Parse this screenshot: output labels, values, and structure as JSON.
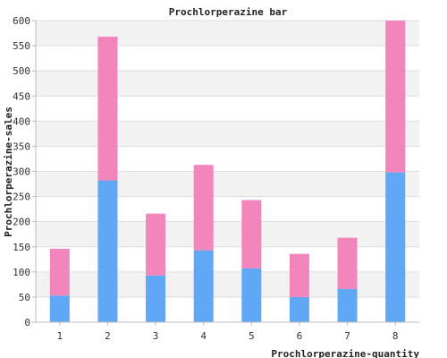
{
  "colors": {
    "series_bottom": "#60a8f5",
    "series_top": "#f385bd",
    "band": "#f2f2f2",
    "gridline": "#dddddd",
    "axis": "#bbbbbb",
    "background": "#ffffff"
  },
  "chart_data": {
    "type": "bar",
    "stacked": true,
    "title": "Prochlorperazine bar",
    "xlabel": "Prochlorperazine-quantity",
    "ylabel": "Prochlorperazine-sales",
    "categories": [
      "1",
      "2",
      "3",
      "4",
      "5",
      "6",
      "7",
      "8"
    ],
    "series": [
      {
        "values": [
          53,
          282,
          93,
          143,
          107,
          50,
          66,
          298
        ]
      },
      {
        "values": [
          93,
          286,
          123,
          170,
          136,
          86,
          102,
          302
        ]
      }
    ],
    "ylim": [
      0,
      600
    ],
    "yticks": [
      0,
      50,
      100,
      150,
      200,
      250,
      300,
      350,
      400,
      450,
      500,
      550,
      600
    ],
    "grid": true,
    "legend": "none"
  }
}
